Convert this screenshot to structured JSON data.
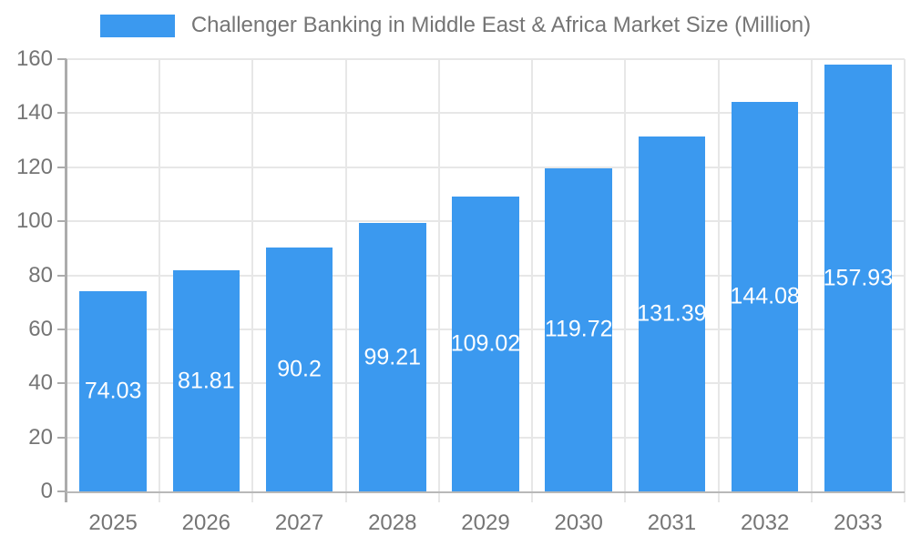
{
  "chart_data": {
    "type": "bar",
    "title": "Challenger Banking in Middle East & Africa Market Size (Million)",
    "categories": [
      "2025",
      "2026",
      "2027",
      "2028",
      "2029",
      "2030",
      "2031",
      "2032",
      "2033"
    ],
    "values": [
      74.03,
      81.81,
      90.2,
      99.21,
      109.02,
      119.72,
      131.39,
      144.08,
      157.93
    ],
    "value_labels": [
      "74.03",
      "81.81",
      "90.2",
      "99.21",
      "109.02",
      "119.72",
      "131.39",
      "144.08",
      "157.93"
    ],
    "series_name": "Challenger Banking in Middle East & Africa Market Size (Million)",
    "xlabel": "",
    "ylabel": "",
    "ylim": [
      0,
      160
    ],
    "yticks": [
      0,
      20,
      40,
      60,
      80,
      100,
      120,
      140,
      160
    ],
    "grid": true,
    "legend_position": "top",
    "colors": {
      "bar": "#3b99ef",
      "bar_label_text": "#ffffff",
      "axis_text": "#757575",
      "title_text": "#757575",
      "gridline": "#e7e7e7",
      "axis_line": "#acacac",
      "baseline": "#b8b8b8",
      "background": "#ffffff"
    }
  }
}
